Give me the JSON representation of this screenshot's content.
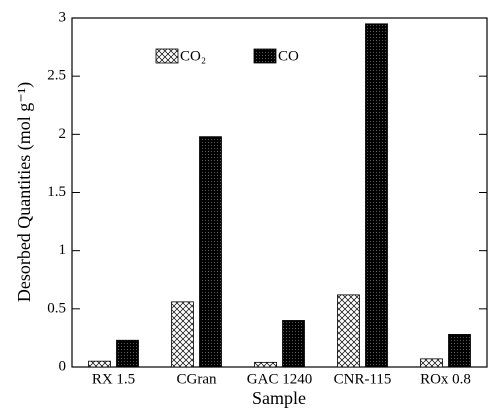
{
  "chart_data": {
    "type": "bar",
    "xlabel": "Sample",
    "ylabel": "Desorbed Quantities (mol g⁻¹)",
    "categories": [
      "RX 1.5",
      "CGran",
      "GAC 1240",
      "CNR-115",
      "ROx 0.8"
    ],
    "series": [
      {
        "name": "CO₂",
        "color": "#ffffff",
        "pattern": "crosshatch",
        "values": [
          0.05,
          0.56,
          0.04,
          0.62,
          0.07
        ]
      },
      {
        "name": "CO",
        "color": "#000000",
        "pattern": "dots",
        "values": [
          0.23,
          1.98,
          0.4,
          2.95,
          0.28
        ]
      }
    ],
    "ylim": [
      0,
      3
    ],
    "yticks": [
      0,
      0.5,
      1,
      1.5,
      2,
      2.5,
      3
    ],
    "legend": "top"
  }
}
